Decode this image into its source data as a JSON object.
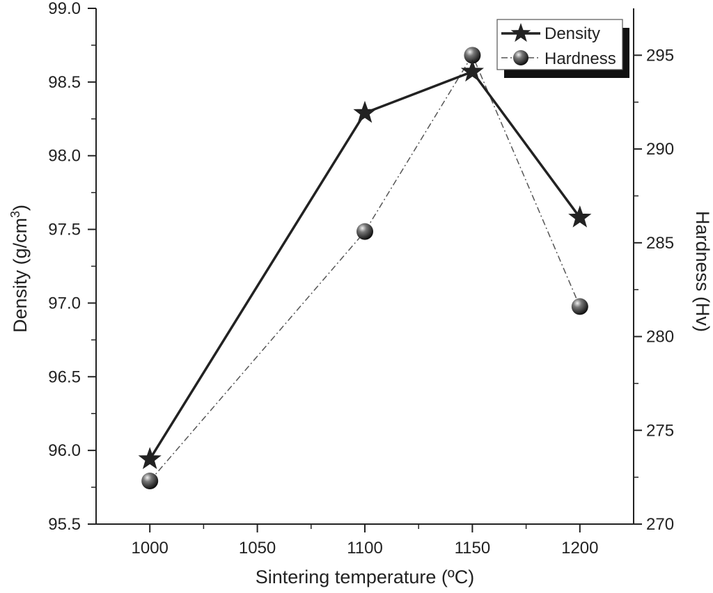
{
  "chart_data": {
    "type": "line",
    "title": "",
    "x": [
      1000,
      1100,
      1150,
      1200
    ],
    "xlabel": "Sintering temperature (ºC)",
    "xlim": [
      975,
      1225
    ],
    "xticks": [
      "1000",
      "1050",
      "1100",
      "1150",
      "1200"
    ],
    "y_left": {
      "label_main": "Density (g/cm",
      "label_sup": "3",
      "label_tail": ")",
      "lim": [
        95.5,
        99.0
      ],
      "ticks": [
        "95.5",
        "96.0",
        "96.5",
        "97.0",
        "97.5",
        "98.0",
        "98.5",
        "99.0"
      ]
    },
    "y_right": {
      "label": "Hardness (Hv)",
      "lim": [
        270,
        297.5
      ],
      "ticks": [
        "270",
        "275",
        "280",
        "285",
        "290",
        "295"
      ]
    },
    "series": [
      {
        "name": "Density",
        "axis": "left",
        "values": [
          95.94,
          98.29,
          98.57,
          97.58
        ],
        "marker": "star",
        "line": "solid",
        "color": "#222222"
      },
      {
        "name": "Hardness",
        "axis": "right",
        "values": [
          272.3,
          285.6,
          295.0,
          281.6
        ],
        "marker": "sphere",
        "line": "dash-dot",
        "color": "#555555"
      }
    ],
    "legend": {
      "position": "top-right",
      "entries": [
        "Density",
        "Hardness"
      ]
    },
    "grid": false
  }
}
